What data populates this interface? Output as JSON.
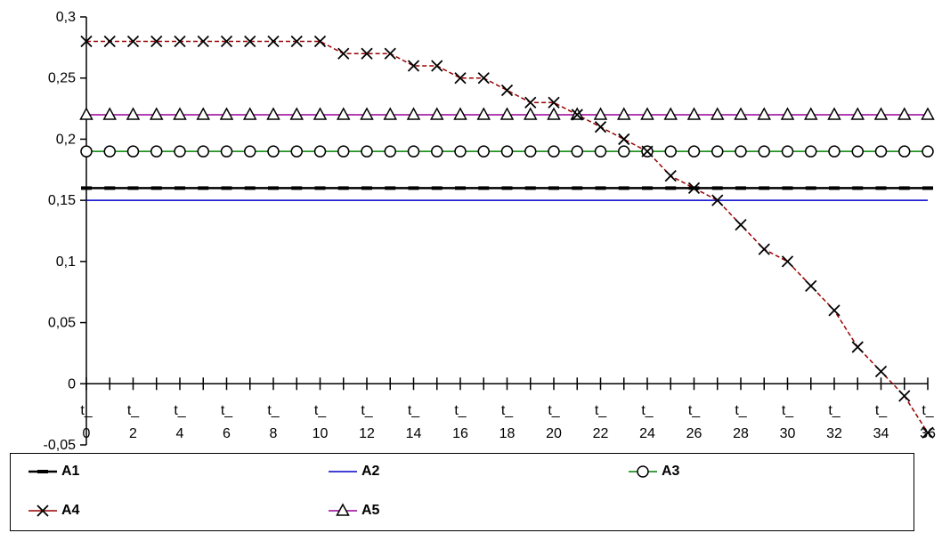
{
  "chart_data": {
    "type": "line",
    "title": "",
    "xlabel": "",
    "ylabel": "",
    "ylim": [
      -0.05,
      0.3
    ],
    "yticks": [
      "0,3",
      "0,25",
      "0,2",
      "0,15",
      "0,1",
      "0,05",
      "0",
      "-0,05"
    ],
    "ytick_values": [
      0.3,
      0.25,
      0.2,
      0.15,
      0.1,
      0.05,
      0,
      -0.05
    ],
    "x_prefix": "t_",
    "x_tick_labels": [
      "0",
      "2",
      "4",
      "6",
      "8",
      "10",
      "12",
      "14",
      "16",
      "18",
      "20",
      "22",
      "24",
      "26",
      "28",
      "30",
      "32",
      "34",
      "36"
    ],
    "x": [
      0,
      1,
      2,
      3,
      4,
      5,
      6,
      7,
      8,
      9,
      10,
      11,
      12,
      13,
      14,
      15,
      16,
      17,
      18,
      19,
      20,
      21,
      22,
      23,
      24,
      25,
      26,
      27,
      28,
      29,
      30,
      31,
      32,
      33,
      34,
      35,
      36
    ],
    "grid": false,
    "legend_position": "bottom",
    "series": [
      {
        "name": "A1",
        "color": "#000000",
        "marker": "dash",
        "values": [
          0.16,
          0.16,
          0.16,
          0.16,
          0.16,
          0.16,
          0.16,
          0.16,
          0.16,
          0.16,
          0.16,
          0.16,
          0.16,
          0.16,
          0.16,
          0.16,
          0.16,
          0.16,
          0.16,
          0.16,
          0.16,
          0.16,
          0.16,
          0.16,
          0.16,
          0.16,
          0.16,
          0.16,
          0.16,
          0.16,
          0.16,
          0.16,
          0.16,
          0.16,
          0.16,
          0.16,
          0.16
        ]
      },
      {
        "name": "A2",
        "color": "#0000cc",
        "marker": "none",
        "values": [
          0.15,
          0.15,
          0.15,
          0.15,
          0.15,
          0.15,
          0.15,
          0.15,
          0.15,
          0.15,
          0.15,
          0.15,
          0.15,
          0.15,
          0.15,
          0.15,
          0.15,
          0.15,
          0.15,
          0.15,
          0.15,
          0.15,
          0.15,
          0.15,
          0.15,
          0.15,
          0.15,
          0.15,
          0.15,
          0.15,
          0.15,
          0.15,
          0.15,
          0.15,
          0.15,
          0.15,
          0.15
        ]
      },
      {
        "name": "A3",
        "color": "#008000",
        "marker": "circle",
        "values": [
          0.19,
          0.19,
          0.19,
          0.19,
          0.19,
          0.19,
          0.19,
          0.19,
          0.19,
          0.19,
          0.19,
          0.19,
          0.19,
          0.19,
          0.19,
          0.19,
          0.19,
          0.19,
          0.19,
          0.19,
          0.19,
          0.19,
          0.19,
          0.19,
          0.19,
          0.19,
          0.19,
          0.19,
          0.19,
          0.19,
          0.19,
          0.19,
          0.19,
          0.19,
          0.19,
          0.19,
          0.19
        ]
      },
      {
        "name": "A4",
        "color": "#990000",
        "marker": "x",
        "dashed": true,
        "values": [
          0.28,
          0.28,
          0.28,
          0.28,
          0.28,
          0.28,
          0.28,
          0.28,
          0.28,
          0.28,
          0.28,
          0.27,
          0.27,
          0.27,
          0.26,
          0.26,
          0.25,
          0.25,
          0.24,
          0.23,
          0.23,
          0.22,
          0.21,
          0.2,
          0.19,
          0.17,
          0.16,
          0.15,
          0.13,
          0.11,
          0.1,
          0.08,
          0.06,
          0.03,
          0.01,
          -0.01,
          -0.04
        ]
      },
      {
        "name": "A5",
        "color": "#990099",
        "marker": "triangle",
        "values": [
          0.22,
          0.22,
          0.22,
          0.22,
          0.22,
          0.22,
          0.22,
          0.22,
          0.22,
          0.22,
          0.22,
          0.22,
          0.22,
          0.22,
          0.22,
          0.22,
          0.22,
          0.22,
          0.22,
          0.22,
          0.22,
          0.22,
          0.22,
          0.22,
          0.22,
          0.22,
          0.22,
          0.22,
          0.22,
          0.22,
          0.22,
          0.22,
          0.22,
          0.22,
          0.22,
          0.22,
          0.22
        ]
      }
    ]
  }
}
